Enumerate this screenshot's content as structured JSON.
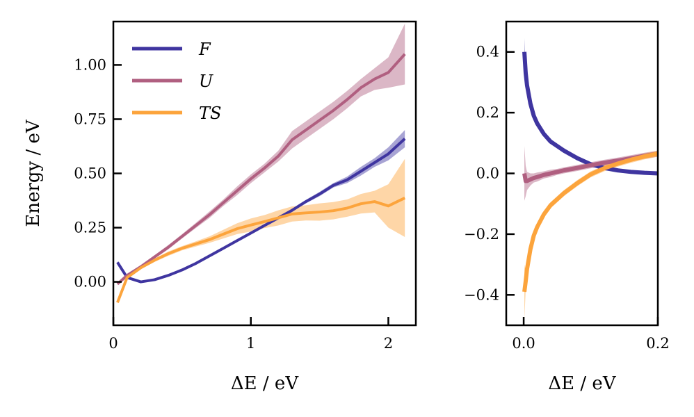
{
  "chart_data": [
    {
      "type": "line",
      "xlabel": "ΔE / eV",
      "ylabel": "Energy / eV",
      "xlim": [
        0,
        2.2
      ],
      "ylim": [
        -0.2,
        1.2
      ],
      "xticks": [
        0,
        1,
        2
      ],
      "xtick_labels": [
        "0",
        "1",
        "2"
      ],
      "yticks": [
        0,
        0.25,
        0.5,
        0.75,
        1.0
      ],
      "ytick_labels": [
        "0.00",
        "0.25",
        "0.50",
        "0.75",
        "1.00"
      ],
      "grid": false,
      "legend_placement": "top-left",
      "x": [
        0.03,
        0.1,
        0.2,
        0.3,
        0.4,
        0.5,
        0.6,
        0.7,
        0.8,
        0.9,
        1.0,
        1.1,
        1.2,
        1.3,
        1.4,
        1.5,
        1.6,
        1.7,
        1.8,
        1.9,
        2.0,
        2.12
      ],
      "series": [
        {
          "name": "F",
          "color": "#3f35a0",
          "values": [
            0.09,
            0.02,
            0.0,
            0.01,
            0.03,
            0.055,
            0.085,
            0.12,
            0.155,
            0.19,
            0.225,
            0.26,
            0.295,
            0.33,
            0.37,
            0.405,
            0.445,
            0.47,
            0.51,
            0.55,
            0.59,
            0.66
          ],
          "err": [
            0.005,
            0.005,
            0.005,
            0.005,
            0.005,
            0.005,
            0.005,
            0.005,
            0.005,
            0.005,
            0.005,
            0.006,
            0.006,
            0.008,
            0.008,
            0.01,
            0.01,
            0.015,
            0.02,
            0.02,
            0.03,
            0.04
          ]
        },
        {
          "name": "U",
          "color": "#b05f80",
          "values": [
            -0.01,
            0.03,
            0.07,
            0.115,
            0.16,
            0.21,
            0.26,
            0.31,
            0.365,
            0.42,
            0.475,
            0.525,
            0.58,
            0.655,
            0.7,
            0.745,
            0.79,
            0.84,
            0.895,
            0.935,
            0.965,
            1.05
          ],
          "err": [
            0.005,
            0.005,
            0.006,
            0.008,
            0.01,
            0.01,
            0.012,
            0.015,
            0.015,
            0.02,
            0.02,
            0.02,
            0.025,
            0.04,
            0.04,
            0.04,
            0.04,
            0.04,
            0.04,
            0.05,
            0.07,
            0.14
          ]
        },
        {
          "name": "TS",
          "color": "#fca43c",
          "values": [
            -0.095,
            0.02,
            0.065,
            0.1,
            0.13,
            0.155,
            0.175,
            0.195,
            0.22,
            0.245,
            0.262,
            0.278,
            0.295,
            0.313,
            0.318,
            0.322,
            0.328,
            0.34,
            0.36,
            0.37,
            0.35,
            0.387
          ],
          "err": [
            0.005,
            0.005,
            0.006,
            0.008,
            0.01,
            0.01,
            0.012,
            0.015,
            0.02,
            0.025,
            0.03,
            0.03,
            0.035,
            0.035,
            0.035,
            0.04,
            0.04,
            0.04,
            0.045,
            0.05,
            0.1,
            0.18
          ]
        }
      ]
    },
    {
      "type": "line",
      "xlabel": "ΔE / eV",
      "ylabel": "",
      "xlim": [
        -0.026,
        0.2
      ],
      "ylim": [
        -0.5,
        0.5
      ],
      "xticks": [
        0,
        0.2
      ],
      "xtick_labels": [
        "0.0",
        "0.2"
      ],
      "yticks": [
        -0.4,
        -0.2,
        0,
        0.2,
        0.4
      ],
      "ytick_labels": [
        "−0.4",
        "−0.2",
        "0.0",
        "0.2",
        "0.4"
      ],
      "grid": false,
      "x": [
        0.001,
        0.003,
        0.005,
        0.01,
        0.015,
        0.02,
        0.03,
        0.04,
        0.05,
        0.06,
        0.08,
        0.1,
        0.12,
        0.14,
        0.16,
        0.18,
        0.2
      ],
      "series": [
        {
          "color": "#3f35a0",
          "values": [
            0.4,
            0.33,
            0.29,
            0.23,
            0.19,
            0.165,
            0.13,
            0.105,
            0.09,
            0.075,
            0.05,
            0.03,
            0.018,
            0.01,
            0.005,
            0.002,
            0.0
          ],
          "err": [
            0.045,
            0.01,
            0.01,
            0.008,
            0.008,
            0.008,
            0.008,
            0.008,
            0.008,
            0.008,
            0.006,
            0.006,
            0.006,
            0.005,
            0.005,
            0.005,
            0.005
          ]
        },
        {
          "color": "#b05f80",
          "values": [
            0.0,
            -0.025,
            -0.025,
            -0.02,
            -0.015,
            -0.012,
            -0.005,
            0.0,
            0.005,
            0.01,
            0.018,
            0.027,
            0.035,
            0.042,
            0.05,
            0.058,
            0.065
          ],
          "err": [
            0.09,
            0.05,
            0.03,
            0.02,
            0.015,
            0.015,
            0.012,
            0.012,
            0.01,
            0.01,
            0.01,
            0.01,
            0.01,
            0.01,
            0.01,
            0.01,
            0.01
          ]
        },
        {
          "color": "#fca43c",
          "values": [
            -0.39,
            -0.355,
            -0.315,
            -0.25,
            -0.205,
            -0.177,
            -0.135,
            -0.105,
            -0.085,
            -0.065,
            -0.032,
            -0.003,
            0.017,
            0.032,
            0.045,
            0.056,
            0.065
          ],
          "err": [
            0.09,
            0.03,
            0.02,
            0.015,
            0.015,
            0.012,
            0.012,
            0.01,
            0.01,
            0.01,
            0.01,
            0.01,
            0.01,
            0.01,
            0.01,
            0.01,
            0.01
          ]
        }
      ]
    }
  ]
}
